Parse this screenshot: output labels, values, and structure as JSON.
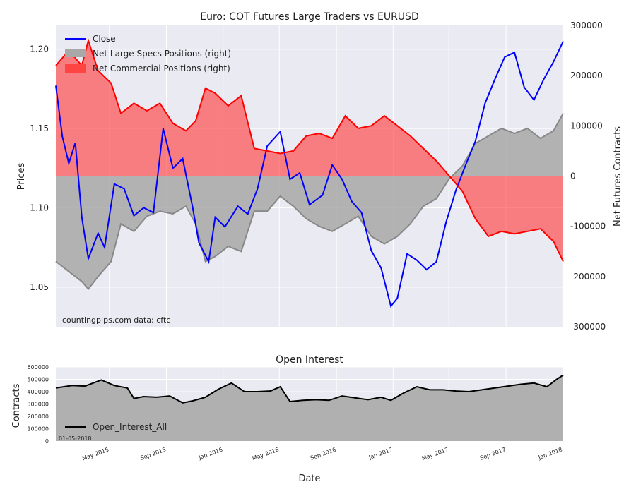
{
  "chart_data": [
    {
      "type": "line",
      "title": "Euro: COT Futures Large Traders vs EURUSD",
      "ylabel": "Prices",
      "y2label": "Net Futures Contracts",
      "ylim": [
        1.025,
        1.215
      ],
      "y2lim": [
        -300000,
        300000
      ],
      "yticks": [
        "1.05",
        "1.10",
        "1.15",
        "1.20"
      ],
      "y2ticks": [
        "300000",
        "200000",
        "100000",
        "0",
        "-100000",
        "-200000",
        "-300000"
      ],
      "x_start": "2015-01-06",
      "x_end": "2018-01-02",
      "grid": true,
      "legend_position": "top-left",
      "watermark": "countingpips.com    data: cftc",
      "series": [
        {
          "name": "Close",
          "axis": "left",
          "color": "#0000ff",
          "x": [
            "2015-01-06",
            "2015-01-20",
            "2015-02-03",
            "2015-02-17",
            "2015-03-03",
            "2015-03-17",
            "2015-04-07",
            "2015-04-21",
            "2015-05-12",
            "2015-06-02",
            "2015-06-23",
            "2015-07-14",
            "2015-08-04",
            "2015-08-25",
            "2015-09-15",
            "2015-10-06",
            "2015-10-27",
            "2015-11-10",
            "2015-12-01",
            "2015-12-15",
            "2016-01-05",
            "2016-02-02",
            "2016-02-23",
            "2016-03-15",
            "2016-04-05",
            "2016-05-03",
            "2016-05-24",
            "2016-06-14",
            "2016-07-05",
            "2016-08-02",
            "2016-08-23",
            "2016-09-13",
            "2016-10-04",
            "2016-10-25",
            "2016-11-15",
            "2016-12-06",
            "2016-12-27",
            "2017-01-10",
            "2017-01-31",
            "2017-02-21",
            "2017-03-14",
            "2017-04-04",
            "2017-04-25",
            "2017-05-16",
            "2017-06-06",
            "2017-06-27",
            "2017-07-18",
            "2017-08-08",
            "2017-08-29",
            "2017-09-19",
            "2017-10-10",
            "2017-10-31",
            "2017-11-21",
            "2017-12-12",
            "2018-01-02"
          ],
          "values": [
            1.177,
            1.145,
            1.128,
            1.141,
            1.094,
            1.068,
            1.084,
            1.075,
            1.115,
            1.112,
            1.095,
            1.1,
            1.097,
            1.15,
            1.125,
            1.131,
            1.101,
            1.078,
            1.066,
            1.094,
            1.088,
            1.101,
            1.096,
            1.112,
            1.139,
            1.148,
            1.118,
            1.122,
            1.102,
            1.108,
            1.127,
            1.118,
            1.104,
            1.097,
            1.073,
            1.062,
            1.038,
            1.043,
            1.071,
            1.067,
            1.061,
            1.066,
            1.091,
            1.111,
            1.127,
            1.142,
            1.166,
            1.181,
            1.195,
            1.198,
            1.176,
            1.168,
            1.181,
            1.192,
            1.205
          ]
        },
        {
          "name": "Net Large Specs Positions (right)",
          "axis": "right",
          "color": "#a8a8a8",
          "x": [
            "2015-01-06",
            "2015-02-03",
            "2015-03-03",
            "2015-03-17",
            "2015-04-07",
            "2015-05-05",
            "2015-05-26",
            "2015-06-23",
            "2015-07-21",
            "2015-08-18",
            "2015-09-15",
            "2015-10-13",
            "2015-11-03",
            "2015-11-24",
            "2015-12-15",
            "2016-01-12",
            "2016-02-09",
            "2016-03-08",
            "2016-04-05",
            "2016-05-03",
            "2016-05-31",
            "2016-06-28",
            "2016-07-26",
            "2016-08-23",
            "2016-09-20",
            "2016-10-18",
            "2016-11-15",
            "2016-12-13",
            "2017-01-10",
            "2017-02-07",
            "2017-03-07",
            "2017-04-04",
            "2017-05-02",
            "2017-05-30",
            "2017-06-27",
            "2017-07-25",
            "2017-08-22",
            "2017-09-19",
            "2017-10-17",
            "2017-11-14",
            "2017-12-12",
            "2018-01-02"
          ],
          "values": [
            -170000,
            -190000,
            -210000,
            -225000,
            -200000,
            -170000,
            -95000,
            -110000,
            -80000,
            -70000,
            -75000,
            -60000,
            -95000,
            -170000,
            -160000,
            -140000,
            -150000,
            -70000,
            -70000,
            -40000,
            -60000,
            -85000,
            -100000,
            -110000,
            -95000,
            -80000,
            -120000,
            -135000,
            -120000,
            -95000,
            -60000,
            -45000,
            -5000,
            20000,
            65000,
            80000,
            95000,
            85000,
            95000,
            75000,
            90000,
            125000
          ]
        },
        {
          "name": "Net Commercial Positions (right)",
          "axis": "right",
          "color": "#ff0000",
          "x": [
            "2015-01-06",
            "2015-02-03",
            "2015-03-03",
            "2015-03-17",
            "2015-04-07",
            "2015-05-05",
            "2015-05-26",
            "2015-06-23",
            "2015-07-21",
            "2015-08-18",
            "2015-09-15",
            "2015-10-13",
            "2015-11-03",
            "2015-11-24",
            "2015-12-15",
            "2016-01-12",
            "2016-02-09",
            "2016-03-08",
            "2016-04-05",
            "2016-05-03",
            "2016-05-31",
            "2016-06-28",
            "2016-07-26",
            "2016-08-23",
            "2016-09-20",
            "2016-10-18",
            "2016-11-15",
            "2016-12-13",
            "2017-01-10",
            "2017-02-07",
            "2017-03-07",
            "2017-04-04",
            "2017-05-02",
            "2017-05-30",
            "2017-06-27",
            "2017-07-25",
            "2017-08-22",
            "2017-09-19",
            "2017-10-17",
            "2017-11-14",
            "2017-12-12",
            "2018-01-02"
          ],
          "values": [
            220000,
            250000,
            220000,
            270000,
            210000,
            185000,
            125000,
            145000,
            130000,
            145000,
            105000,
            90000,
            110000,
            175000,
            165000,
            140000,
            160000,
            55000,
            50000,
            45000,
            50000,
            80000,
            85000,
            75000,
            120000,
            95000,
            100000,
            120000,
            100000,
            80000,
            55000,
            30000,
            0,
            -30000,
            -85000,
            -120000,
            -110000,
            -115000,
            -110000,
            -105000,
            -130000,
            -170000
          ]
        }
      ]
    },
    {
      "type": "area",
      "title": "Open Interest",
      "xlabel": "Date",
      "ylabel": "Contracts",
      "ylim": [
        0,
        600000
      ],
      "yticks": [
        "0",
        "100000",
        "200000",
        "300000",
        "400000",
        "500000",
        "600000"
      ],
      "date_label": "01-05-2018",
      "xticks": [
        "May 2015",
        "Sep 2015",
        "Jan 2016",
        "May 2016",
        "Sep 2016",
        "Jan 2017",
        "May 2017",
        "Sep 2017",
        "Jan 2018"
      ],
      "legend_position": "lower-left",
      "grid": true,
      "series": [
        {
          "name": "Open_Interest_All",
          "color": "#000000",
          "fill": "#b0b0b0",
          "x": [
            "2015-01-06",
            "2015-02-10",
            "2015-03-10",
            "2015-04-14",
            "2015-05-12",
            "2015-06-09",
            "2015-06-23",
            "2015-07-14",
            "2015-08-11",
            "2015-09-08",
            "2015-10-06",
            "2015-10-27",
            "2015-11-24",
            "2015-12-22",
            "2016-01-19",
            "2016-02-16",
            "2016-03-15",
            "2016-04-12",
            "2016-05-03",
            "2016-05-24",
            "2016-06-21",
            "2016-07-19",
            "2016-08-16",
            "2016-09-13",
            "2016-10-11",
            "2016-11-08",
            "2016-12-06",
            "2016-12-27",
            "2017-01-24",
            "2017-02-21",
            "2017-03-21",
            "2017-04-18",
            "2017-05-16",
            "2017-06-13",
            "2017-07-11",
            "2017-08-08",
            "2017-09-05",
            "2017-10-03",
            "2017-10-31",
            "2017-11-28",
            "2017-12-19",
            "2018-01-02"
          ],
          "values": [
            430000,
            450000,
            445000,
            495000,
            450000,
            430000,
            345000,
            360000,
            355000,
            365000,
            310000,
            325000,
            355000,
            420000,
            470000,
            400000,
            400000,
            405000,
            440000,
            320000,
            330000,
            335000,
            330000,
            365000,
            350000,
            335000,
            355000,
            330000,
            390000,
            440000,
            415000,
            415000,
            405000,
            400000,
            415000,
            430000,
            445000,
            460000,
            470000,
            440000,
            500000,
            535000
          ]
        }
      ]
    }
  ]
}
